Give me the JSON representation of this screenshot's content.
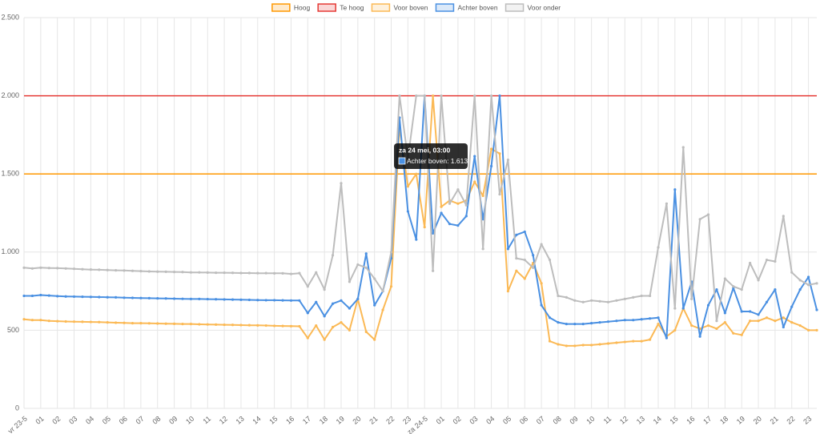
{
  "chart_data": {
    "type": "line",
    "categories": [
      "vr 23-5",
      null,
      "01",
      null,
      "02",
      null,
      "03",
      null,
      "04",
      null,
      "05",
      null,
      "06",
      null,
      "07",
      null,
      "08",
      null,
      "09",
      null,
      "10",
      null,
      "11",
      null,
      "12",
      null,
      "13",
      null,
      "14",
      null,
      "15",
      null,
      "16",
      null,
      "17",
      null,
      "18",
      null,
      "19",
      null,
      "20",
      null,
      "21",
      null,
      "22",
      null,
      "23",
      null,
      "za 24-5",
      null,
      "01",
      null,
      "02",
      null,
      "03",
      null,
      "04",
      null,
      "05",
      null,
      "06",
      null,
      "07",
      null,
      "08",
      null,
      "09",
      null,
      "10",
      null,
      "11",
      null,
      "12",
      null,
      "13",
      null,
      "14",
      null,
      "15",
      null,
      "16",
      null,
      "17",
      null,
      "18",
      null,
      "19",
      null,
      "20",
      null,
      "21",
      null,
      "22",
      null,
      "23",
      null
    ],
    "thresholds": [
      {
        "name": "Hoog",
        "color": "#ff9800",
        "value": 1500
      },
      {
        "name": "Te hoog",
        "color": "#e53935",
        "value": 2000
      }
    ],
    "series": [
      {
        "name": "Voor boven",
        "color": "#fbb955",
        "values": [
          570,
          565,
          565,
          560,
          558,
          556,
          555,
          554,
          553,
          552,
          550,
          548,
          547,
          545,
          545,
          544,
          543,
          542,
          541,
          540,
          540,
          538,
          537,
          536,
          535,
          534,
          533,
          532,
          531,
          530,
          528,
          527,
          526,
          525,
          450,
          530,
          440,
          520,
          550,
          500,
          700,
          490,
          440,
          630,
          780,
          1800,
          1420,
          1500,
          1160,
          2000,
          1290,
          1330,
          1310,
          1330,
          1450,
          1360,
          1660,
          1630,
          750,
          880,
          830,
          930,
          800,
          430,
          410,
          400,
          400,
          405,
          405,
          410,
          415,
          420,
          425,
          430,
          430,
          440,
          540,
          460,
          500,
          640,
          530,
          510,
          530,
          510,
          550,
          480,
          470,
          560,
          560,
          580,
          560,
          580,
          550,
          530,
          500,
          500
        ]
      },
      {
        "name": "Achter boven",
        "color": "#4a90e2",
        "values": [
          720,
          720,
          725,
          722,
          718,
          716,
          715,
          714,
          713,
          712,
          711,
          710,
          708,
          707,
          706,
          705,
          704,
          703,
          702,
          701,
          700,
          700,
          699,
          698,
          697,
          696,
          695,
          694,
          693,
          692,
          692,
          691,
          690,
          690,
          610,
          680,
          590,
          670,
          690,
          640,
          700,
          990,
          660,
          750,
          960,
          1860,
          1260,
          1080,
          2000,
          1120,
          1250,
          1180,
          1170,
          1230,
          1613,
          1210,
          1550,
          2000,
          1020,
          1110,
          1130,
          980,
          660,
          580,
          550,
          540,
          540,
          540,
          545,
          550,
          555,
          560,
          565,
          565,
          570,
          575,
          580,
          450,
          1400,
          640,
          810,
          460,
          660,
          760,
          610,
          770,
          620,
          620,
          600,
          680,
          760,
          520,
          650,
          760,
          840,
          630
        ]
      },
      {
        "name": "Voor onder",
        "color": "#bdbdbd",
        "values": [
          900,
          895,
          900,
          898,
          897,
          895,
          893,
          890,
          888,
          887,
          885,
          883,
          882,
          880,
          878,
          876,
          875,
          874,
          873,
          872,
          870,
          870,
          869,
          868,
          868,
          867,
          866,
          866,
          865,
          865,
          864,
          864,
          860,
          865,
          780,
          870,
          760,
          980,
          1440,
          810,
          920,
          900,
          830,
          750,
          1000,
          2000,
          1600,
          2000,
          2000,
          880,
          2000,
          1310,
          1400,
          1300,
          2000,
          1020,
          2000,
          1370,
          1590,
          960,
          950,
          900,
          1050,
          950,
          720,
          710,
          690,
          680,
          690,
          685,
          680,
          690,
          700,
          710,
          720,
          720,
          1030,
          1310,
          640,
          1670,
          700,
          1210,
          1240,
          560,
          830,
          780,
          760,
          930,
          820,
          950,
          940,
          1230,
          870,
          820,
          790,
          800
        ]
      }
    ],
    "ylim": [
      0,
      2500
    ],
    "yticks": [
      0,
      500,
      {
        "value": 1000,
        "label": "1.000"
      },
      {
        "value": 1500,
        "label": "1.500"
      },
      {
        "value": 2000,
        "label": "2.000"
      },
      {
        "value": 2500,
        "label": "2.500"
      }
    ],
    "grid": true,
    "legend": "top",
    "tooltip": {
      "title": "za 24 mei, 03:00",
      "label": "Achter boven: 1.613"
    }
  }
}
